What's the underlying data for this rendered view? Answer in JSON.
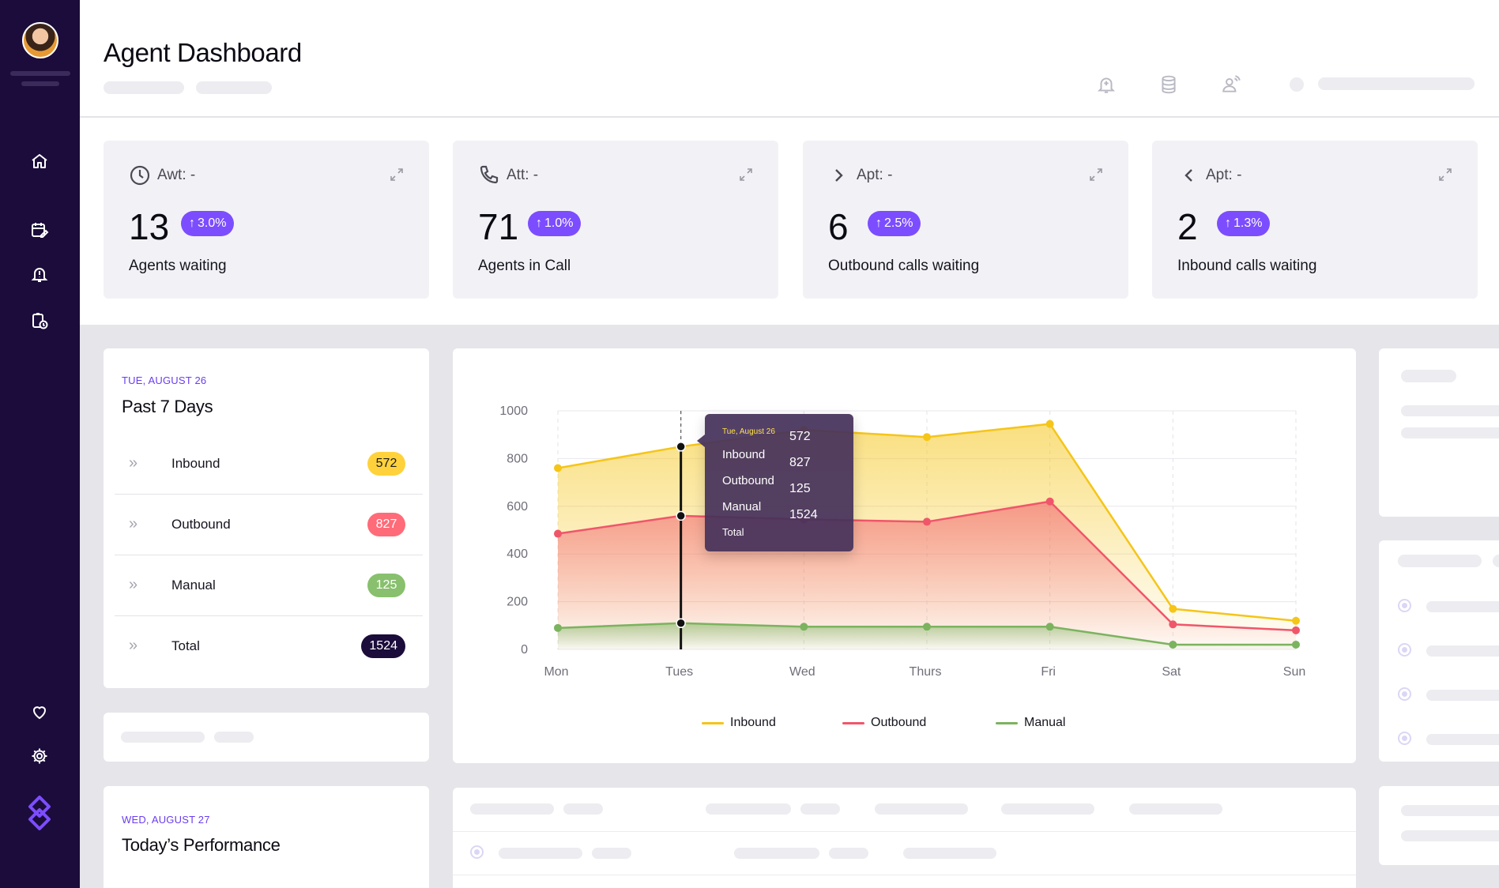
{
  "header": {
    "title": "Agent Dashboard"
  },
  "stats": [
    {
      "label_prefix": "Awt: -",
      "value": "13",
      "badge": "3.0%",
      "caption": "Agents waiting",
      "icon": "clock-icon"
    },
    {
      "label_prefix": "Att: -",
      "value": "71",
      "badge": "1.0%",
      "caption": "Agents in Call",
      "icon": "phone-icon"
    },
    {
      "label_prefix": "Apt: -",
      "value": "6",
      "badge": "2.5%",
      "caption": "Outbound calls waiting",
      "icon": "chevron-right-icon"
    },
    {
      "label_prefix": "Apt: -",
      "value": "2",
      "badge": "1.3%",
      "caption": "Inbound calls waiting",
      "icon": "chevron-left-icon"
    }
  ],
  "summary": {
    "date": "TUE, AUGUST 26",
    "title": "Past 7 Days",
    "rows": [
      {
        "label": "Inbound",
        "value": "572",
        "color": "#ffd23c",
        "text_color": "#1b1b1b"
      },
      {
        "label": "Outbound",
        "value": "827",
        "color": "#ff6b78",
        "text_color": "#ffffff"
      },
      {
        "label": "Manual",
        "value": "125",
        "color": "#88c06e",
        "text_color": "#ffffff"
      },
      {
        "label": "Total",
        "value": "1524",
        "color": "#1b0c3b",
        "text_color": "#ffffff"
      }
    ]
  },
  "performance": {
    "date": "WED, AUGUST 27",
    "title": "Today’s Performance"
  },
  "tooltip": {
    "date": "Tue, August 26",
    "labels": [
      "Inbound",
      "Outbound",
      "Manual",
      "Total"
    ],
    "values": [
      "572",
      "827",
      "125",
      "1524"
    ]
  },
  "chart_data": {
    "type": "area",
    "categories": [
      "Mon",
      "Tues",
      "Wed",
      "Thurs",
      "Fri",
      "Sat",
      "Sun"
    ],
    "series": [
      {
        "name": "Inbound",
        "color": "#f5c518",
        "values": [
          760,
          850,
          920,
          890,
          945,
          170,
          120
        ]
      },
      {
        "name": "Outbound",
        "color": "#f0566a",
        "values": [
          485,
          560,
          545,
          535,
          620,
          105,
          80
        ]
      },
      {
        "name": "Manual",
        "color": "#7bb35e",
        "values": [
          90,
          110,
          95,
          95,
          95,
          20,
          20
        ]
      }
    ],
    "ylim": [
      0,
      1000
    ],
    "yticks": [
      "0",
      "200",
      "400",
      "600",
      "800",
      "1000"
    ],
    "highlight_category": "Tues",
    "grid": true,
    "legend_position": "bottom"
  }
}
